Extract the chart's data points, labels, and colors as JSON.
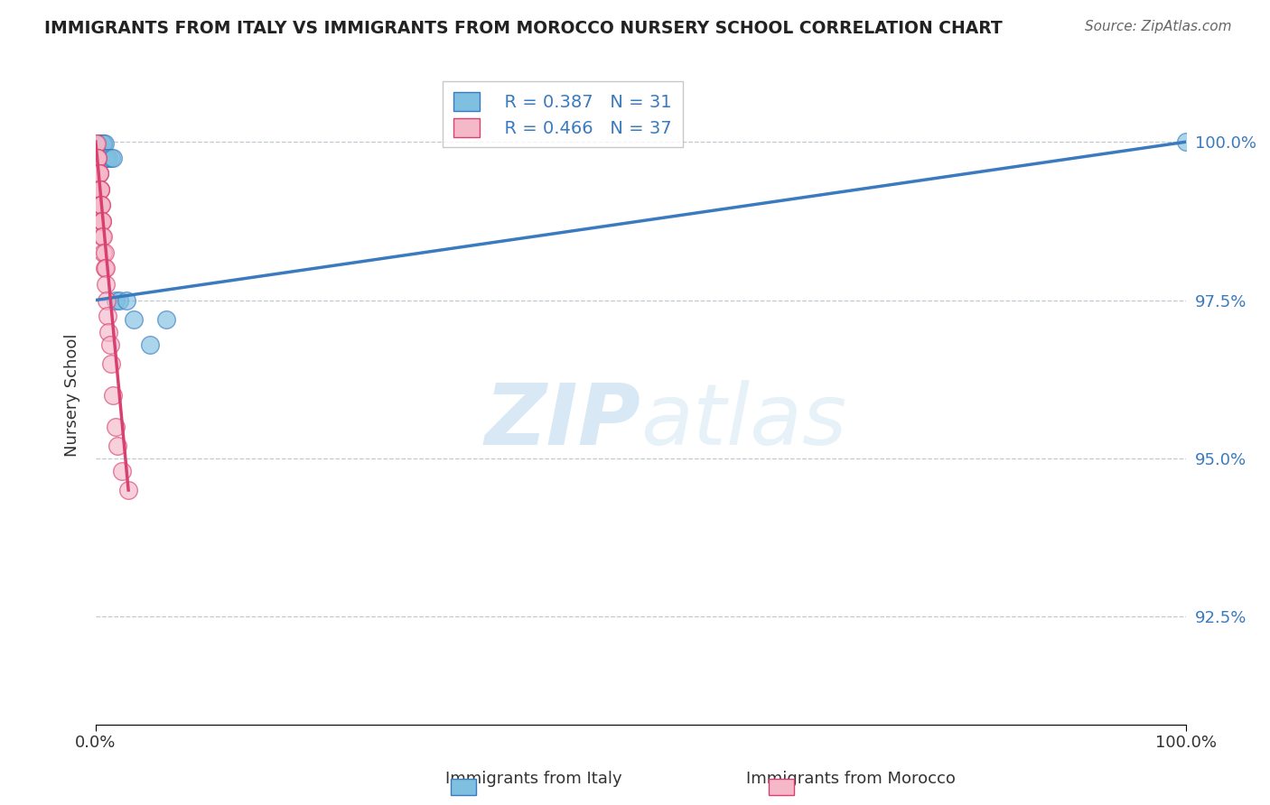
{
  "title": "IMMIGRANTS FROM ITALY VS IMMIGRANTS FROM MOROCCO NURSERY SCHOOL CORRELATION CHART",
  "source": "Source: ZipAtlas.com",
  "ylabel": "Nursery School",
  "xlim": [
    0,
    1.0
  ],
  "ylim": [
    0.908,
    1.012
  ],
  "yticks": [
    0.925,
    0.95,
    0.975,
    1.0
  ],
  "ytick_labels": [
    "92.5%",
    "95.0%",
    "97.5%",
    "100.0%"
  ],
  "xticks": [
    0.0,
    1.0
  ],
  "xtick_labels": [
    "0.0%",
    "100.0%"
  ],
  "legend_R_italy": "R = 0.387",
  "legend_N_italy": "N = 31",
  "legend_R_morocco": "R = 0.466",
  "legend_N_morocco": "N = 37",
  "italy_color": "#7fbfdf",
  "morocco_color": "#f5b8c8",
  "italy_line_color": "#3a7abf",
  "morocco_line_color": "#d94070",
  "watermark_zip": "ZIP",
  "watermark_atlas": "atlas",
  "italy_x": [
    0.001,
    0.002,
    0.002,
    0.003,
    0.003,
    0.003,
    0.004,
    0.004,
    0.004,
    0.005,
    0.005,
    0.005,
    0.006,
    0.006,
    0.007,
    0.007,
    0.008,
    0.008,
    0.009,
    0.009,
    0.01,
    0.012,
    0.014,
    0.016,
    0.018,
    0.022,
    0.028,
    0.035,
    0.05,
    0.065,
    1.0
  ],
  "italy_y": [
    0.9998,
    0.9998,
    0.9998,
    0.9998,
    0.9998,
    0.9998,
    0.9998,
    0.9998,
    0.9998,
    0.9998,
    0.9998,
    0.9998,
    0.9998,
    0.9998,
    0.9998,
    0.9998,
    0.9998,
    0.9975,
    0.9975,
    0.9975,
    0.9975,
    0.9975,
    0.9975,
    0.9975,
    0.975,
    0.975,
    0.975,
    0.972,
    0.968,
    0.972,
    1.0
  ],
  "morocco_x": [
    0.0,
    0.001,
    0.001,
    0.001,
    0.002,
    0.002,
    0.002,
    0.003,
    0.003,
    0.003,
    0.003,
    0.004,
    0.004,
    0.004,
    0.004,
    0.005,
    0.005,
    0.005,
    0.006,
    0.006,
    0.006,
    0.007,
    0.007,
    0.008,
    0.008,
    0.009,
    0.009,
    0.01,
    0.011,
    0.012,
    0.013,
    0.014,
    0.016,
    0.018,
    0.02,
    0.024,
    0.03
  ],
  "morocco_y": [
    0.9998,
    0.9998,
    0.9975,
    0.9975,
    0.9975,
    0.9975,
    0.995,
    0.995,
    0.995,
    0.995,
    0.9925,
    0.9925,
    0.9925,
    0.9925,
    0.99,
    0.99,
    0.99,
    0.9875,
    0.9875,
    0.9875,
    0.985,
    0.985,
    0.9825,
    0.9825,
    0.98,
    0.98,
    0.9775,
    0.975,
    0.9725,
    0.97,
    0.968,
    0.965,
    0.96,
    0.955,
    0.952,
    0.948,
    0.945
  ],
  "italy_trendline_x": [
    0.0,
    1.0
  ],
  "italy_trendline_y": [
    0.975,
    1.0
  ],
  "morocco_trendline_x": [
    0.0,
    0.03
  ],
  "morocco_trendline_y": [
    1.0,
    0.945
  ]
}
